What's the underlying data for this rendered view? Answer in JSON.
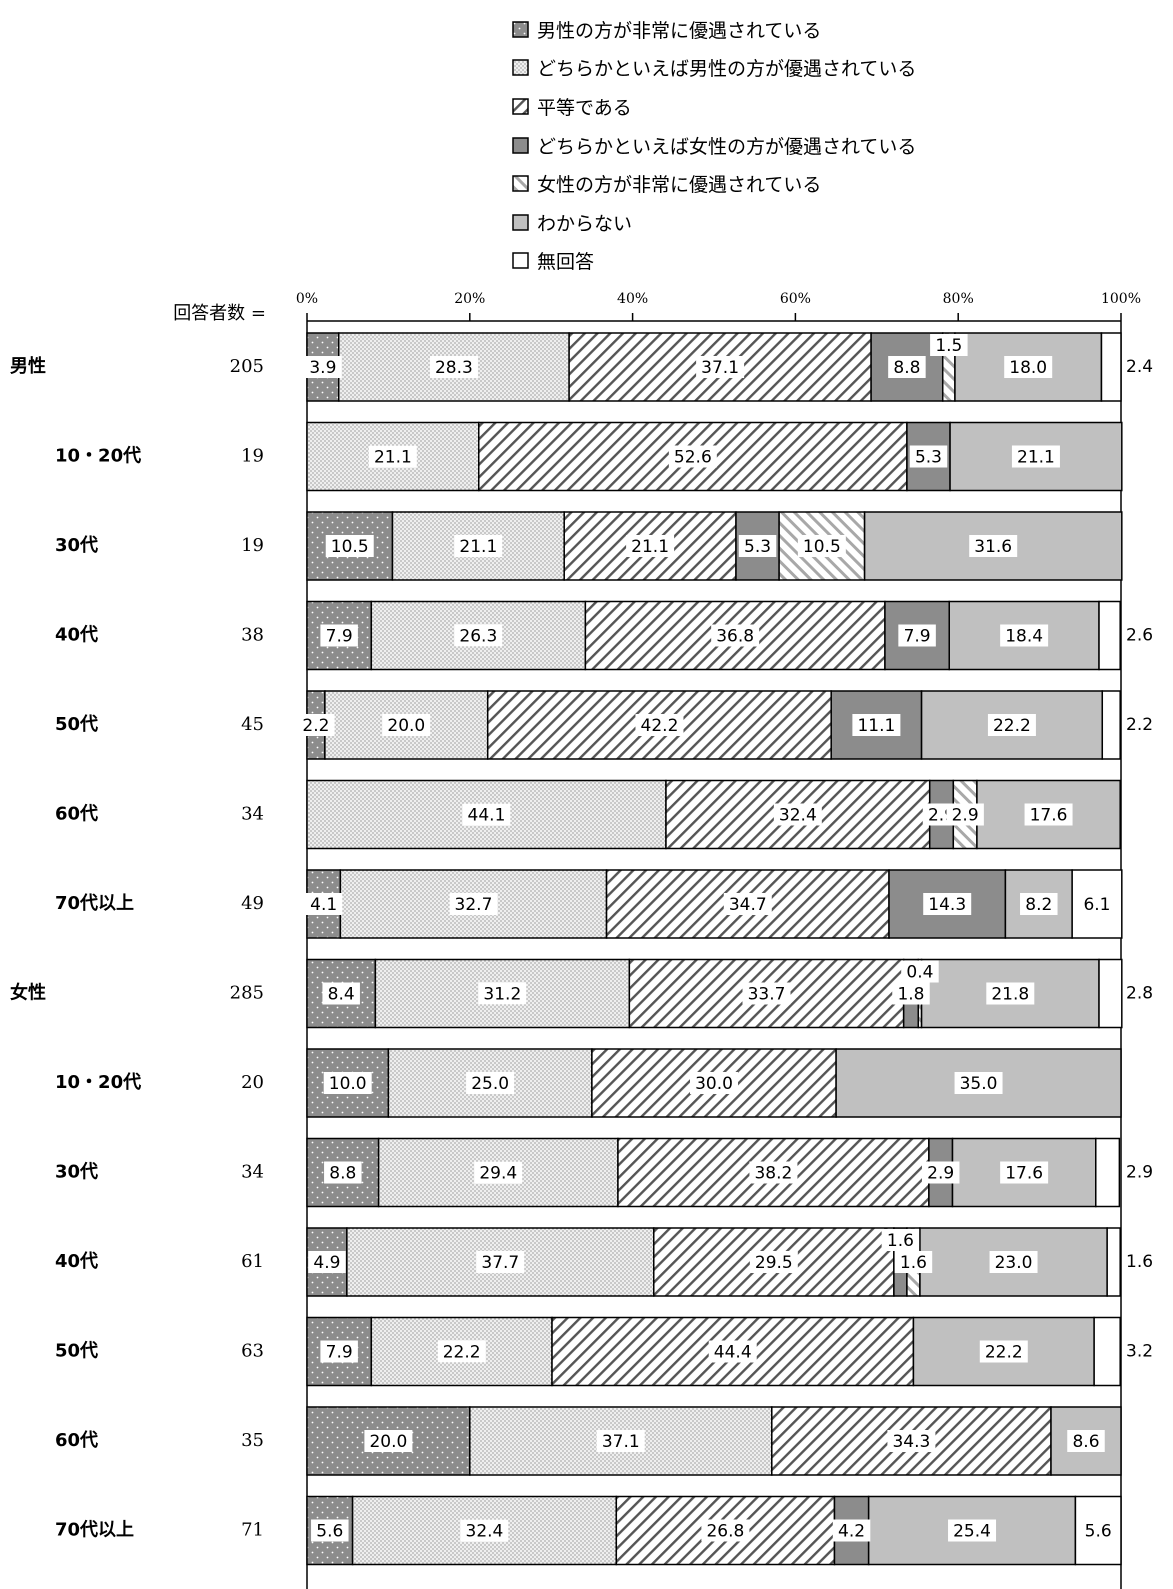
{
  "chart_data": {
    "type": "stacked-bar-horizontal",
    "respondents_label": "回答者数 =",
    "x_ticks": [
      "0%",
      "20%",
      "40%",
      "60%",
      "80%",
      "100%"
    ],
    "xlim": [
      0,
      100
    ],
    "legend_position": "top",
    "series": [
      {
        "name": "男性の方が非常に優遇されている",
        "pattern": "dots-dark",
        "color": "#8c8c8c"
      },
      {
        "name": "どちらかといえば男性の方が優遇されている",
        "pattern": "dots-light",
        "color": "#e6e6e6"
      },
      {
        "name": "平等である",
        "pattern": "diagonal-white",
        "color": "#ffffff"
      },
      {
        "name": "どちらかといえば女性の方が優遇されている",
        "pattern": "solid-dark",
        "color": "#8c8c8c"
      },
      {
        "name": "女性の方が非常に優遇されている",
        "pattern": "diagonal-gray",
        "color": "#ffffff"
      },
      {
        "name": "わからない",
        "pattern": "solid-light",
        "color": "#c0c0c0"
      },
      {
        "name": "無回答",
        "pattern": "none",
        "color": "#ffffff"
      }
    ],
    "rows": [
      {
        "label": "男性",
        "n": "205",
        "indent": false,
        "values": [
          3.9,
          28.3,
          37.1,
          8.8,
          1.5,
          18.0,
          2.4
        ]
      },
      {
        "label": "10・20代",
        "n": "19",
        "indent": true,
        "values": [
          0,
          21.1,
          52.6,
          5.3,
          0,
          21.1,
          0
        ]
      },
      {
        "label": "30代",
        "n": "19",
        "indent": true,
        "values": [
          10.5,
          21.1,
          21.1,
          5.3,
          10.5,
          31.6,
          0
        ]
      },
      {
        "label": "40代",
        "n": "38",
        "indent": true,
        "values": [
          7.9,
          26.3,
          36.8,
          7.9,
          0,
          18.4,
          2.6
        ]
      },
      {
        "label": "50代",
        "n": "45",
        "indent": true,
        "values": [
          2.2,
          20.0,
          42.2,
          11.1,
          0,
          22.2,
          2.2
        ]
      },
      {
        "label": "60代",
        "n": "34",
        "indent": true,
        "values": [
          0,
          44.1,
          32.4,
          2.9,
          2.9,
          17.6,
          0
        ]
      },
      {
        "label": "70代以上",
        "n": "49",
        "indent": true,
        "values": [
          4.1,
          32.7,
          34.7,
          14.3,
          0,
          8.2,
          6.1
        ]
      },
      {
        "label": "女性",
        "n": "285",
        "indent": false,
        "values": [
          8.4,
          31.2,
          33.7,
          1.8,
          0.4,
          21.8,
          2.8
        ]
      },
      {
        "label": "10・20代",
        "n": "20",
        "indent": true,
        "values": [
          10.0,
          25.0,
          30.0,
          0,
          0,
          35.0,
          0
        ]
      },
      {
        "label": "30代",
        "n": "34",
        "indent": true,
        "values": [
          8.8,
          29.4,
          38.2,
          2.9,
          0,
          17.6,
          2.9
        ]
      },
      {
        "label": "40代",
        "n": "61",
        "indent": true,
        "values": [
          4.9,
          37.7,
          29.5,
          1.6,
          1.6,
          23.0,
          1.6
        ]
      },
      {
        "label": "50代",
        "n": "63",
        "indent": true,
        "values": [
          7.9,
          22.2,
          44.4,
          0,
          0,
          22.2,
          3.2
        ]
      },
      {
        "label": "60代",
        "n": "35",
        "indent": true,
        "values": [
          20.0,
          37.1,
          34.3,
          0,
          0,
          8.6,
          0
        ]
      },
      {
        "label": "70代以上",
        "n": "71",
        "indent": true,
        "values": [
          5.6,
          32.4,
          26.8,
          4.2,
          0,
          25.4,
          5.6
        ]
      }
    ]
  }
}
